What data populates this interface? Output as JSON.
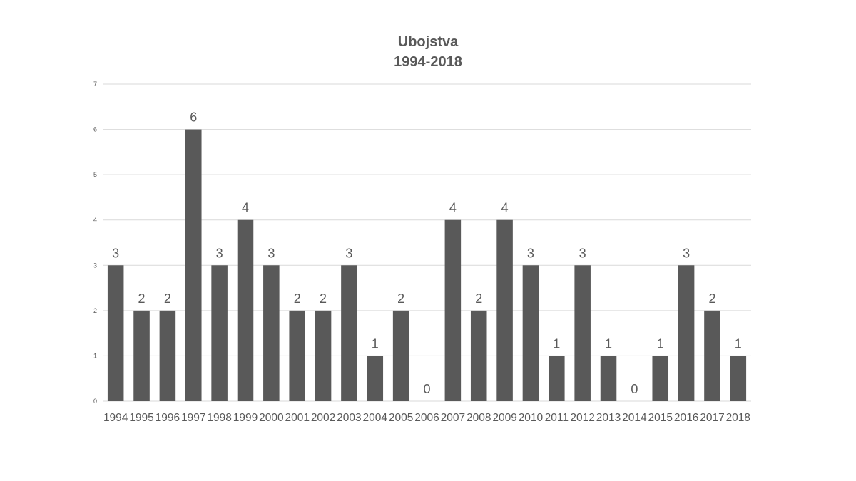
{
  "chart_data": {
    "type": "bar",
    "title": "Ubojstva",
    "subtitle": "1994-2018",
    "xlabel": "",
    "ylabel": "",
    "categories": [
      "1994",
      "1995",
      "1996",
      "1997",
      "1998",
      "1999",
      "2000",
      "2001",
      "2002",
      "2003",
      "2004",
      "2005",
      "2006",
      "2007",
      "2008",
      "2009",
      "2010",
      "2011",
      "2012",
      "2013",
      "2014",
      "2015",
      "2016",
      "2017",
      "2018"
    ],
    "values": [
      3,
      2,
      2,
      6,
      3,
      4,
      3,
      2,
      2,
      3,
      1,
      2,
      0,
      4,
      2,
      4,
      3,
      1,
      3,
      1,
      0,
      1,
      3,
      2,
      1
    ],
    "ylim": [
      0,
      7
    ],
    "yticks": [
      0,
      1,
      2,
      3,
      4,
      5,
      6,
      7
    ],
    "grid": true,
    "legend": "none",
    "bar_color": "#595959",
    "grid_color": "#d9d9d9",
    "text_color": "#595959"
  }
}
